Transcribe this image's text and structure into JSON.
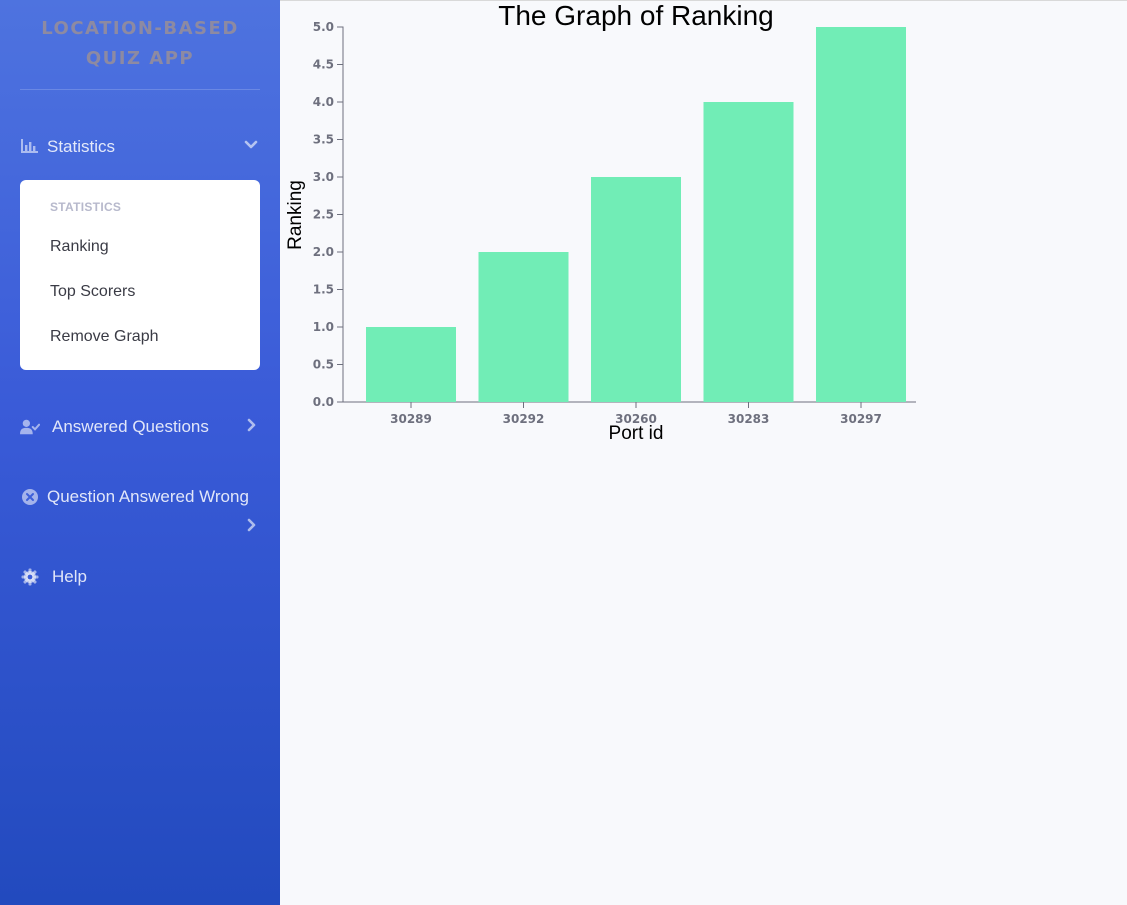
{
  "app": {
    "brand": "LOCATION-BASED QUIZ APP"
  },
  "sidebar": {
    "statistics": {
      "label": "Statistics",
      "icon": "chart-bar-icon"
    },
    "collapse": {
      "header": "STATISTICS",
      "items": [
        "Ranking",
        "Top Scorers",
        "Remove Graph"
      ]
    },
    "answered": {
      "label": "Answered Questions",
      "icon": "user-check-icon"
    },
    "wrong": {
      "label": "Question Answered Wrong",
      "icon": "times-circle-icon"
    },
    "help": {
      "label": "Help",
      "icon": "cog-icon"
    }
  },
  "colors": {
    "sidebar_top": "#4e73df",
    "sidebar_bottom": "#224abe",
    "bar": "#71edb6",
    "tick_text": "#6e707e"
  },
  "chart_data": {
    "type": "bar",
    "title": "The Graph of Ranking",
    "xlabel": "Port id",
    "ylabel": "Ranking",
    "categories": [
      "30289",
      "30292",
      "30260",
      "30283",
      "30297"
    ],
    "values": [
      1,
      2,
      3,
      4,
      5
    ],
    "ylim": [
      0,
      5
    ],
    "yticks": [
      "0.0",
      "0.5",
      "1.0",
      "1.5",
      "2.0",
      "2.5",
      "3.0",
      "3.5",
      "4.0",
      "4.5",
      "5.0"
    ],
    "grid": false,
    "legend": "none"
  }
}
